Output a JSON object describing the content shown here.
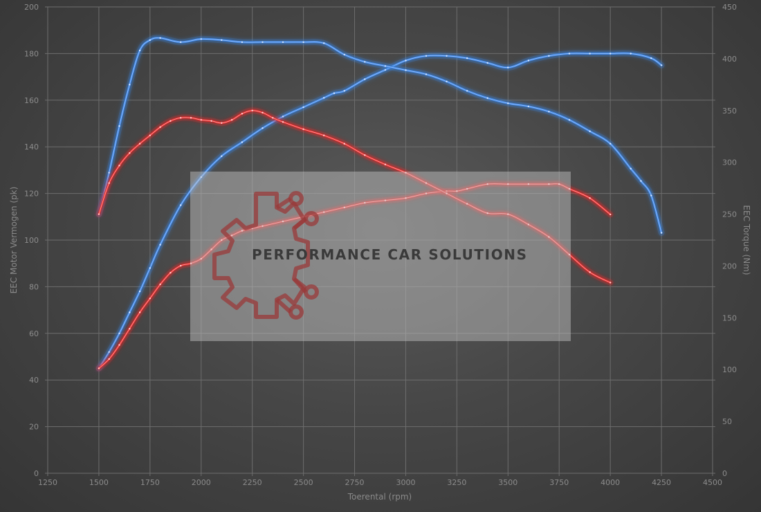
{
  "chart_data": {
    "type": "line",
    "title": "",
    "xlabel": "Toerental (rpm)",
    "ylabel_left": "EEC Motor Vermogen (pk)",
    "ylabel_right": "EEC Torque (Nm)",
    "xlim": [
      1250,
      4500
    ],
    "ylim_left": [
      0,
      200
    ],
    "ylim_right": [
      0,
      450
    ],
    "xticks": [
      1250,
      1500,
      1750,
      2000,
      2250,
      2500,
      2750,
      3000,
      3250,
      3500,
      3750,
      4000,
      4250,
      4500
    ],
    "yticks_left": [
      0,
      20,
      40,
      60,
      80,
      100,
      120,
      140,
      160,
      180,
      200
    ],
    "yticks_right": [
      0,
      50,
      100,
      150,
      200,
      250,
      300,
      350,
      400,
      450
    ],
    "grid": true,
    "series": [
      {
        "axis": "left",
        "color": "#3b82e0",
        "x": [
          1500,
          1550,
          1600,
          1650,
          1700,
          1750,
          1800,
          1900,
          2000,
          2100,
          2200,
          2300,
          2400,
          2500,
          2600,
          2650,
          2700,
          2800,
          2900,
          3000,
          3100,
          3200,
          3300,
          3400,
          3500,
          3600,
          3700,
          3800,
          3900,
          4000,
          4100,
          4200,
          4250
        ],
        "y": [
          45,
          52,
          60,
          69,
          78,
          88,
          98,
          115,
          127,
          136,
          142,
          148,
          153,
          157,
          161,
          163,
          164,
          169,
          173,
          177,
          179,
          179,
          178,
          176,
          174,
          177,
          179,
          180,
          180,
          180,
          180,
          178,
          175
        ]
      },
      {
        "axis": "right",
        "color": "#3b82e0",
        "x": [
          1500,
          1550,
          1600,
          1650,
          1700,
          1750,
          1800,
          1900,
          2000,
          2100,
          2200,
          2300,
          2400,
          2500,
          2600,
          2700,
          2800,
          2900,
          3000,
          3100,
          3200,
          3300,
          3400,
          3500,
          3600,
          3700,
          3800,
          3900,
          4000,
          4100,
          4150,
          4200,
          4250
        ],
        "y": [
          250,
          290,
          335,
          375,
          408,
          418,
          420,
          416,
          419,
          418,
          416,
          416,
          416,
          416,
          415,
          404,
          397,
          393,
          389,
          385,
          378,
          369,
          362,
          357,
          354,
          349,
          341,
          330,
          318,
          294,
          282,
          268,
          232
        ]
      },
      {
        "axis": "left",
        "color": "#e02828",
        "x": [
          1500,
          1550,
          1600,
          1650,
          1700,
          1750,
          1800,
          1850,
          1900,
          1950,
          2000,
          2050,
          2100,
          2150,
          2200,
          2250,
          2300,
          2400,
          2500,
          2600,
          2700,
          2800,
          2900,
          3000,
          3100,
          3200,
          3250,
          3300,
          3400,
          3500,
          3600,
          3700,
          3750,
          3800,
          3900,
          4000
        ],
        "y": [
          45,
          49,
          55,
          62,
          69,
          75,
          81,
          86,
          89,
          90,
          92,
          96,
          100,
          102,
          104,
          105,
          106,
          108,
          110,
          112,
          114,
          116,
          117,
          118,
          120,
          121,
          121,
          122,
          124,
          124,
          124,
          124,
          124,
          122,
          118,
          111
        ]
      },
      {
        "axis": "right",
        "color": "#e02828",
        "x": [
          1500,
          1550,
          1600,
          1650,
          1700,
          1750,
          1800,
          1850,
          1900,
          1950,
          2000,
          2050,
          2100,
          2150,
          2200,
          2250,
          2300,
          2350,
          2400,
          2500,
          2600,
          2700,
          2800,
          2900,
          3000,
          3100,
          3200,
          3300,
          3400,
          3500,
          3600,
          3700,
          3800,
          3900,
          4000
        ],
        "y": [
          250,
          280,
          297,
          309,
          318,
          326,
          334,
          340,
          343,
          343,
          341,
          340,
          338,
          341,
          347,
          350,
          348,
          343,
          339,
          332,
          326,
          318,
          307,
          298,
          290,
          280,
          270,
          260,
          251,
          250,
          240,
          228,
          211,
          194,
          184
        ]
      }
    ]
  },
  "watermark": {
    "text": "PERFORMANCE CAR SOLUTIONS",
    "logo_icon": "gear-circuit-logo-icon"
  }
}
